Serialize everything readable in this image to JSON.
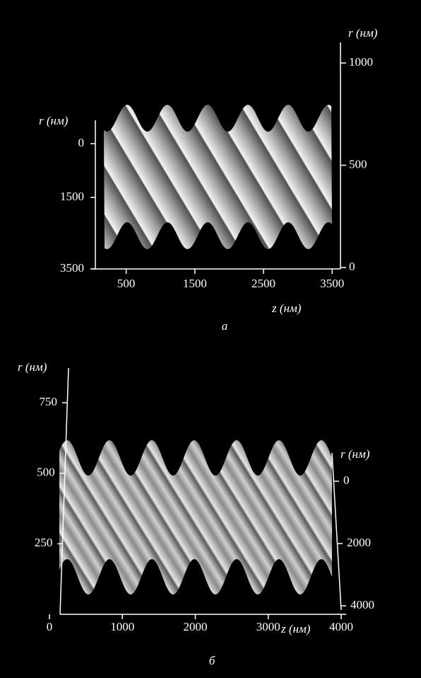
{
  "panel_a": {
    "caption": "а",
    "left_axis": {
      "label": "r (нм)",
      "lim": [
        0,
        3500
      ],
      "ticks": [
        0,
        1500,
        3500
      ]
    },
    "right_axis": {
      "label": "r (нм)",
      "lim": [
        0,
        1000
      ],
      "ticks": [
        0,
        500,
        1000
      ]
    },
    "bottom_axis": {
      "label": "z (нм)",
      "lim": [
        0,
        3600
      ],
      "ticks": [
        500,
        1500,
        2500,
        3500
      ]
    }
  },
  "panel_b": {
    "caption": "б",
    "left_axis": {
      "label": "r (нм)",
      "lim": [
        0,
        750
      ],
      "ticks": [
        250,
        500,
        750
      ]
    },
    "right_axis": {
      "label": "r (нм)",
      "lim": [
        0,
        4000
      ],
      "ticks": [
        0,
        2000,
        4000
      ]
    },
    "bottom_axis": {
      "label": "z (нм)",
      "lim": [
        0,
        4000
      ],
      "ticks": [
        0,
        1000,
        2000,
        3000,
        4000
      ]
    }
  }
}
